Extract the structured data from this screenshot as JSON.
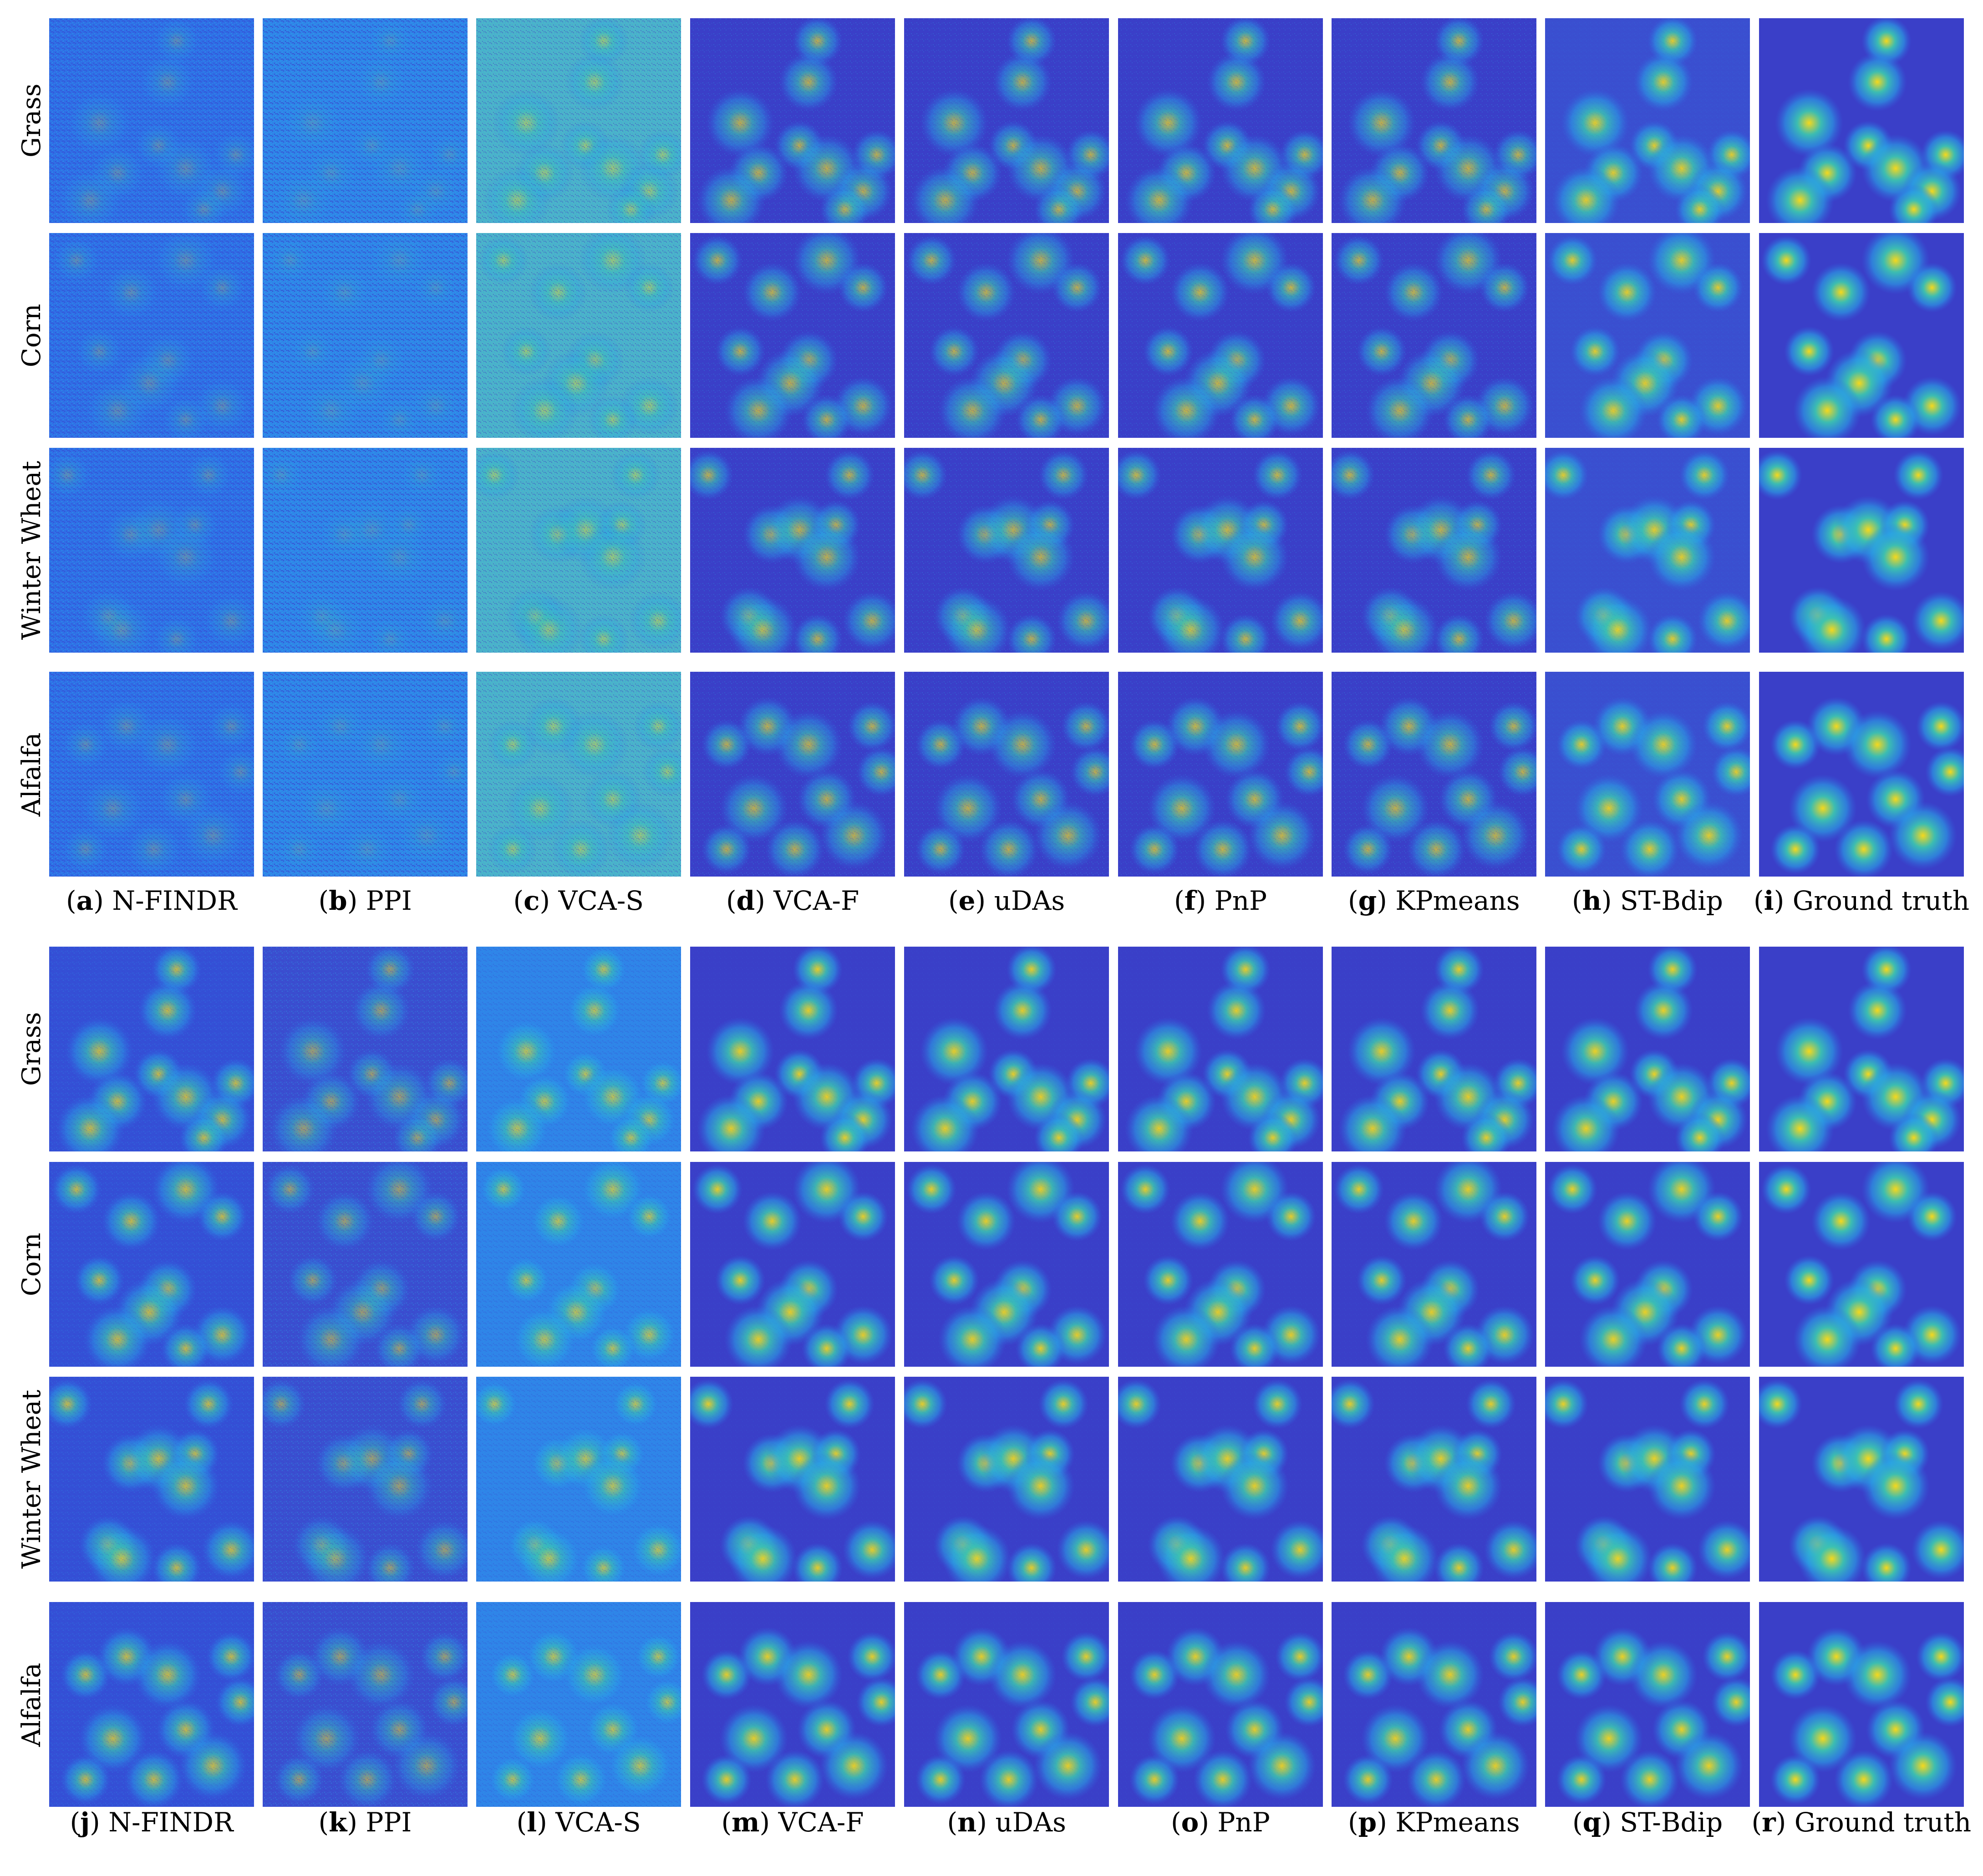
{
  "figure": {
    "panel_top": {
      "rows": [
        "Grass",
        "Corn",
        "Winter Wheat",
        "Alfalfa"
      ],
      "captions": [
        {
          "letter": "a",
          "method": "N-FINDR"
        },
        {
          "letter": "b",
          "method": "PPI"
        },
        {
          "letter": "c",
          "method": "VCA-S"
        },
        {
          "letter": "d",
          "method": "VCA-F"
        },
        {
          "letter": "e",
          "method": "uDAs"
        },
        {
          "letter": "f",
          "method": "PnP"
        },
        {
          "letter": "g",
          "method": "KPmeans"
        },
        {
          "letter": "h",
          "method": "ST-Bdip"
        },
        {
          "letter": "i",
          "method": "Ground truth"
        }
      ]
    },
    "panel_bottom": {
      "rows": [
        "Grass",
        "Corn",
        "Winter Wheat",
        "Alfalfa"
      ],
      "captions": [
        {
          "letter": "j",
          "method": "N-FINDR"
        },
        {
          "letter": "k",
          "method": "PPI"
        },
        {
          "letter": "l",
          "method": "VCA-S"
        },
        {
          "letter": "m",
          "method": "VCA-F"
        },
        {
          "letter": "n",
          "method": "uDAs"
        },
        {
          "letter": "o",
          "method": "PnP"
        },
        {
          "letter": "p",
          "method": "KPmeans"
        },
        {
          "letter": "q",
          "method": "ST-Bdip"
        },
        {
          "letter": "r",
          "method": "Ground truth"
        }
      ]
    },
    "colormap": {
      "low": "#3a3fc8",
      "mid_low": "#2f6fe6",
      "mid": "#29a7e6",
      "mid_high": "#3cc3b0",
      "high": "#f6d81c"
    }
  }
}
